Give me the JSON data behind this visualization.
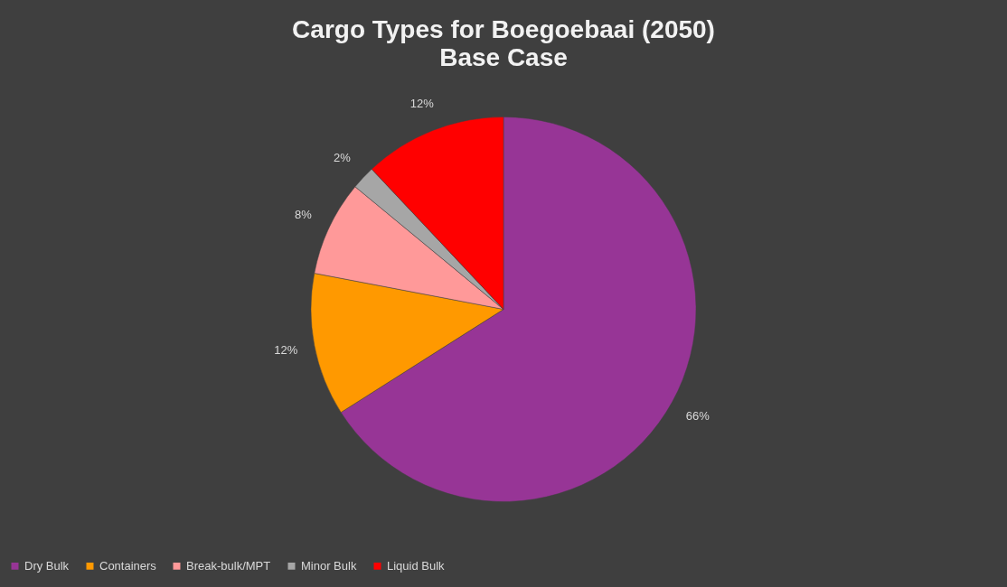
{
  "chart_data": {
    "type": "pie",
    "title": "Cargo Types for Boegoebaai (2050)",
    "subtitle": "Base Case",
    "categories": [
      "Dry Bulk",
      "Containers",
      "Break-bulk/MPT",
      "Minor Bulk",
      "Liquid Bulk"
    ],
    "values": [
      66,
      12,
      8,
      2,
      12
    ],
    "value_labels": [
      "66%",
      "12%",
      "8%",
      "2%",
      "12%"
    ],
    "colors": [
      "#973596",
      "#ff9900",
      "#ff9999",
      "#a6a6a6",
      "#ff0000"
    ],
    "legend": "bottom"
  }
}
